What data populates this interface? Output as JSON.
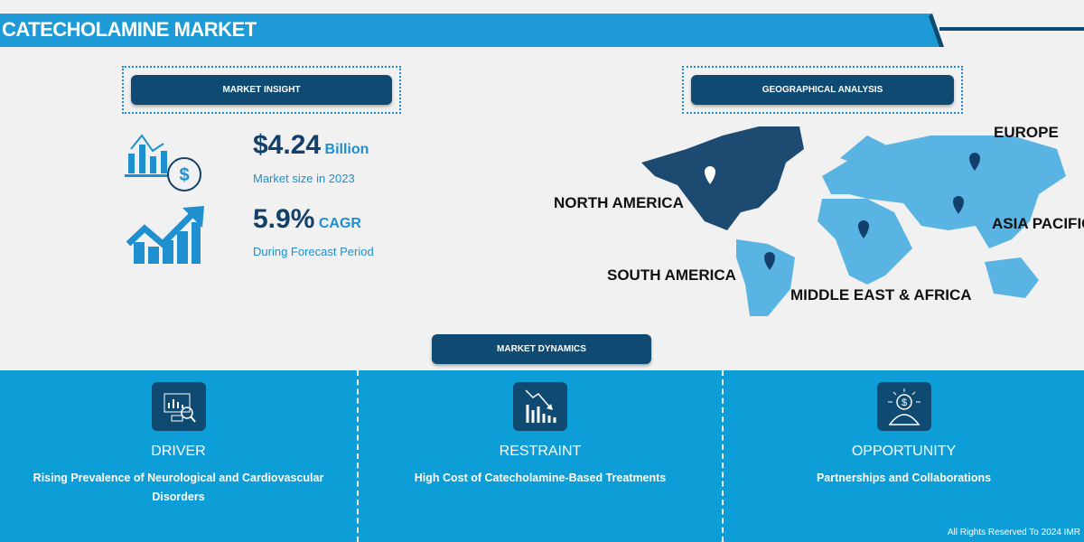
{
  "header": {
    "title": "CATECHOLAMINE MARKET"
  },
  "market_insight": {
    "label": "MARKET INSIGHT",
    "market_size": "$4.24",
    "market_size_unit": "Billion",
    "market_size_caption": "Market size in 2023",
    "cagr": "5.9%",
    "cagr_unit": "CAGR",
    "cagr_caption": "During Forecast Period"
  },
  "geographical_analysis": {
    "label": "GEOGRAPHICAL ANALYSIS",
    "regions": [
      "NORTH AMERICA",
      "EUROPE",
      "ASIA PACIFIC",
      "SOUTH AMERICA",
      "MIDDLE EAST & AFRICA"
    ],
    "highlight_color": "#1c4a70",
    "region_color": "#5ab4e3"
  },
  "market_dynamics": {
    "label": "MARKET DYNAMICS",
    "items": [
      {
        "title": "DRIVER",
        "description": "Rising Prevalence of Neurological and Cardiovascular Disorders",
        "icon": "chart-magnifier-icon"
      },
      {
        "title": "RESTRAINT",
        "description": "High Cost of Catecholamine-Based Treatments",
        "icon": "declining-chart-icon"
      },
      {
        "title": "OPPORTUNITY",
        "description": "Partnerships and Collaborations",
        "icon": "lightbulb-dollar-icon"
      }
    ]
  },
  "footer": {
    "copyright": "All Rights Reserved To 2024 IMR"
  },
  "colors": {
    "primary": "#1e9ad6",
    "dark": "#0f4a72"
  }
}
